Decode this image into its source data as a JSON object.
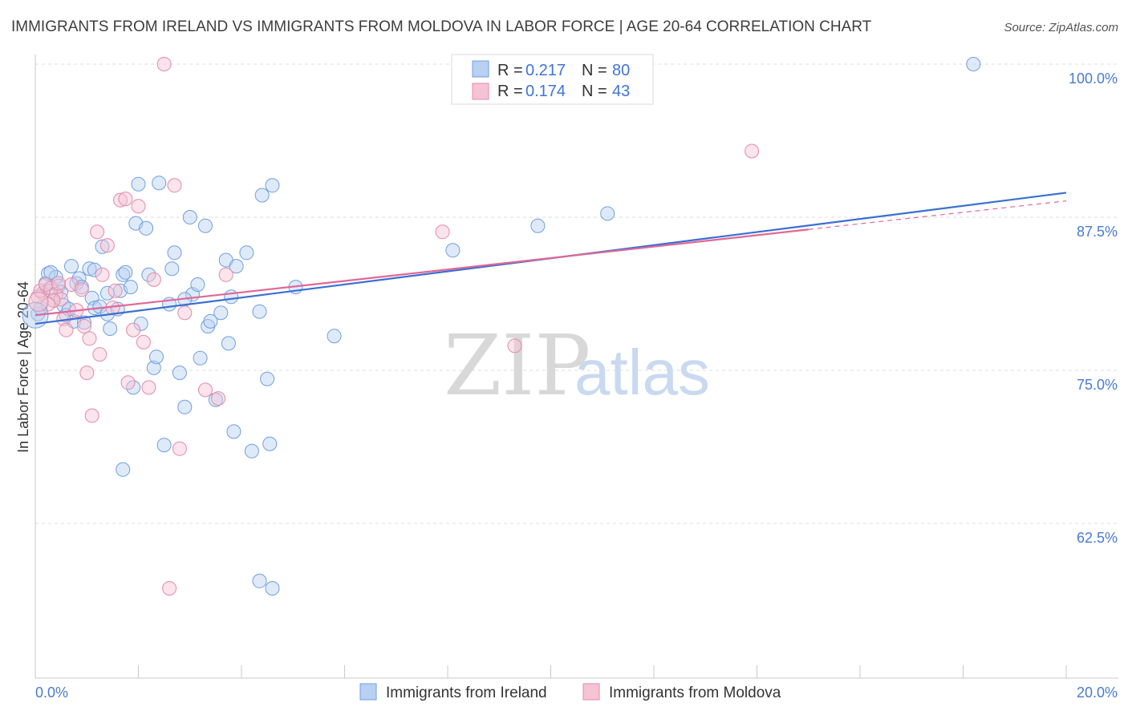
{
  "title": "IMMIGRANTS FROM IRELAND VS IMMIGRANTS FROM MOLDOVA IN LABOR FORCE | AGE 20-64 CORRELATION CHART",
  "source": "Source: ZipAtlas.com",
  "watermark": {
    "zip": "ZIP",
    "atlas": "atlas"
  },
  "legend_box": {
    "rows": [
      {
        "r_label": "R =",
        "r_value": "0.217",
        "n_label": "N =",
        "n_value": "80"
      },
      {
        "r_label": "R =",
        "r_value": "0.174",
        "n_label": "N =",
        "n_value": "43"
      }
    ]
  },
  "bottom_legend": [
    "Immigrants from Ireland",
    "Immigrants from Moldova"
  ],
  "chart_data": {
    "type": "scatter",
    "title": "IMMIGRANTS FROM IRELAND VS IMMIGRANTS FROM MOLDOVA IN LABOR FORCE | AGE 20-64 CORRELATION CHART",
    "xlabel": "",
    "ylabel": "In Labor Force | Age 20-64",
    "xlim": [
      0,
      20
    ],
    "ylim": [
      51.5,
      101.5
    ],
    "x_tick_labels": [
      "0.0%",
      "20.0%"
    ],
    "y_ticks": [
      {
        "value": 100,
        "label": "100.0%"
      },
      {
        "value": 87.5,
        "label": "87.5%"
      },
      {
        "value": 75,
        "label": "75.0%"
      },
      {
        "value": 62.5,
        "label": "62.5%"
      }
    ],
    "grid": "horizontal dashed",
    "series": [
      {
        "name": "Immigrants from Ireland",
        "color": "#6f9fe0",
        "fill": "#b8d0f2",
        "line_color": "#3a6fd3",
        "trend": {
          "x": [
            0,
            20
          ],
          "y": [
            78.8,
            89.5
          ]
        },
        "points": [
          [
            0.05,
            79.6
          ],
          [
            0.1,
            80.1
          ],
          [
            0.15,
            81.3
          ],
          [
            0.2,
            82.1
          ],
          [
            0.25,
            82.9
          ],
          [
            0.3,
            81.5
          ],
          [
            0.35,
            80.7
          ],
          [
            0.4,
            82.6
          ],
          [
            0.45,
            81.9
          ],
          [
            0.5,
            81.4
          ],
          [
            0.55,
            80.3
          ],
          [
            0.6,
            79.5
          ],
          [
            0.7,
            83.5
          ],
          [
            0.75,
            79.0
          ],
          [
            0.8,
            82.1
          ],
          [
            0.85,
            82.5
          ],
          [
            0.9,
            81.8
          ],
          [
            1.05,
            83.3
          ],
          [
            1.1,
            80.9
          ],
          [
            1.15,
            80.1
          ],
          [
            1.25,
            80.2
          ],
          [
            1.3,
            85.1
          ],
          [
            1.4,
            79.6
          ],
          [
            1.45,
            78.4
          ],
          [
            1.6,
            80.0
          ],
          [
            1.65,
            81.5
          ],
          [
            1.7,
            82.8
          ],
          [
            1.75,
            83.0
          ],
          [
            1.85,
            81.8
          ],
          [
            1.95,
            87.0
          ],
          [
            2.0,
            90.2
          ],
          [
            2.05,
            78.8
          ],
          [
            2.15,
            86.6
          ],
          [
            2.2,
            82.8
          ],
          [
            2.3,
            75.2
          ],
          [
            2.35,
            76.1
          ],
          [
            2.4,
            90.3
          ],
          [
            2.5,
            68.9
          ],
          [
            2.6,
            80.4
          ],
          [
            2.65,
            83.3
          ],
          [
            2.7,
            84.6
          ],
          [
            2.8,
            74.8
          ],
          [
            2.9,
            72.0
          ],
          [
            3.0,
            87.5
          ],
          [
            3.05,
            81.2
          ],
          [
            3.15,
            82.0
          ],
          [
            3.2,
            76.0
          ],
          [
            3.3,
            86.8
          ],
          [
            3.35,
            78.6
          ],
          [
            3.4,
            79.0
          ],
          [
            3.5,
            72.6
          ],
          [
            3.6,
            79.7
          ],
          [
            3.7,
            84.0
          ],
          [
            3.75,
            77.2
          ],
          [
            3.8,
            81.0
          ],
          [
            3.85,
            70.0
          ],
          [
            3.9,
            83.5
          ],
          [
            4.1,
            84.6
          ],
          [
            4.2,
            68.4
          ],
          [
            4.35,
            79.8
          ],
          [
            4.4,
            89.3
          ],
          [
            4.5,
            74.3
          ],
          [
            4.55,
            69.0
          ],
          [
            4.6,
            90.1
          ],
          [
            5.05,
            81.8
          ],
          [
            5.8,
            77.8
          ],
          [
            8.1,
            84.8
          ],
          [
            9.75,
            86.8
          ],
          [
            11.1,
            87.8
          ],
          [
            18.2,
            100.0
          ],
          [
            1.15,
            83.2
          ],
          [
            1.7,
            66.9
          ],
          [
            4.6,
            57.2
          ],
          [
            4.35,
            57.8
          ],
          [
            1.9,
            73.6
          ],
          [
            0.3,
            83.0
          ],
          [
            0.65,
            80.0
          ],
          [
            1.4,
            81.3
          ],
          [
            2.9,
            80.8
          ],
          [
            0.95,
            78.9
          ]
        ]
      },
      {
        "name": "Immigrants from Moldova",
        "color": "#e58aa8",
        "fill": "#f6c3d3",
        "line_color": "#e06896",
        "trend": {
          "x": [
            0,
            15
          ],
          "y": [
            79.5,
            86.5
          ]
        },
        "points": [
          [
            0.05,
            81.0
          ],
          [
            0.1,
            81.5
          ],
          [
            0.2,
            82.0
          ],
          [
            0.3,
            81.7
          ],
          [
            0.4,
            81.2
          ],
          [
            0.5,
            80.8
          ],
          [
            0.55,
            79.2
          ],
          [
            0.6,
            78.3
          ],
          [
            0.7,
            82.0
          ],
          [
            0.8,
            79.9
          ],
          [
            0.9,
            81.6
          ],
          [
            0.95,
            78.6
          ],
          [
            1.0,
            74.8
          ],
          [
            1.05,
            77.6
          ],
          [
            1.1,
            71.3
          ],
          [
            1.2,
            86.3
          ],
          [
            1.25,
            76.3
          ],
          [
            1.4,
            85.2
          ],
          [
            1.55,
            81.5
          ],
          [
            1.65,
            88.9
          ],
          [
            1.75,
            89.0
          ],
          [
            1.8,
            74.0
          ],
          [
            1.9,
            78.3
          ],
          [
            2.0,
            88.4
          ],
          [
            2.1,
            77.3
          ],
          [
            2.2,
            73.6
          ],
          [
            2.3,
            82.4
          ],
          [
            2.5,
            100.0
          ],
          [
            2.6,
            57.2
          ],
          [
            2.7,
            90.1
          ],
          [
            2.8,
            68.6
          ],
          [
            2.9,
            79.7
          ],
          [
            3.3,
            73.4
          ],
          [
            3.55,
            72.7
          ],
          [
            3.7,
            82.8
          ],
          [
            7.9,
            86.3
          ],
          [
            9.3,
            77.0
          ],
          [
            13.9,
            92.9
          ],
          [
            0.35,
            80.7
          ],
          [
            0.45,
            82.1
          ],
          [
            1.3,
            82.8
          ],
          [
            1.5,
            80.1
          ],
          [
            0.25,
            80.4
          ]
        ]
      }
    ]
  }
}
